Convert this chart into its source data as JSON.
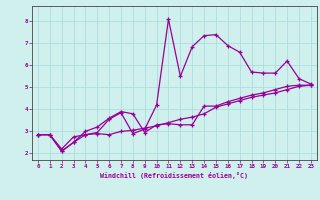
{
  "xlabel": "Windchill (Refroidissement éolien,°C)",
  "bg_color": "#cff0ec",
  "grid_color": "#aadddd",
  "line_color": "#990099",
  "xlim": [
    -0.5,
    23.5
  ],
  "ylim": [
    1.7,
    8.7
  ],
  "xticks": [
    0,
    1,
    2,
    3,
    4,
    5,
    6,
    7,
    8,
    9,
    10,
    11,
    12,
    13,
    14,
    15,
    16,
    17,
    18,
    19,
    20,
    21,
    22,
    23
  ],
  "yticks": [
    2,
    3,
    4,
    5,
    6,
    7,
    8
  ],
  "series1_x": [
    0,
    1,
    2,
    3,
    4,
    5,
    6,
    7,
    8,
    9,
    10,
    11,
    12,
    13,
    14,
    15,
    16,
    17,
    18,
    19,
    20,
    21,
    22,
    23
  ],
  "series1_y": [
    2.85,
    2.85,
    2.2,
    2.75,
    2.85,
    2.9,
    2.85,
    3.0,
    3.05,
    3.15,
    3.25,
    3.4,
    3.55,
    3.65,
    3.8,
    4.1,
    4.25,
    4.4,
    4.55,
    4.65,
    4.75,
    4.9,
    5.05,
    5.1
  ],
  "series2_x": [
    0,
    1,
    2,
    3,
    4,
    5,
    6,
    7,
    8,
    9,
    10,
    11,
    12,
    13,
    14,
    15,
    16,
    17,
    18,
    19,
    20,
    21,
    22,
    23
  ],
  "series2_y": [
    2.85,
    2.85,
    2.1,
    2.5,
    3.0,
    3.2,
    3.6,
    3.9,
    3.8,
    2.95,
    3.3,
    3.35,
    3.3,
    3.3,
    4.15,
    4.15,
    4.35,
    4.5,
    4.65,
    4.75,
    4.9,
    5.05,
    5.1,
    5.1
  ],
  "series3_x": [
    0,
    1,
    2,
    3,
    4,
    5,
    6,
    7,
    8,
    9,
    10,
    11,
    12,
    13,
    14,
    15,
    16,
    17,
    18,
    19,
    20,
    21,
    22,
    23
  ],
  "series3_y": [
    2.85,
    2.85,
    2.1,
    2.5,
    2.85,
    2.95,
    3.55,
    3.85,
    2.9,
    3.1,
    4.2,
    8.1,
    5.5,
    6.85,
    7.35,
    7.4,
    6.9,
    6.6,
    5.7,
    5.65,
    5.65,
    6.2,
    5.4,
    5.15
  ]
}
